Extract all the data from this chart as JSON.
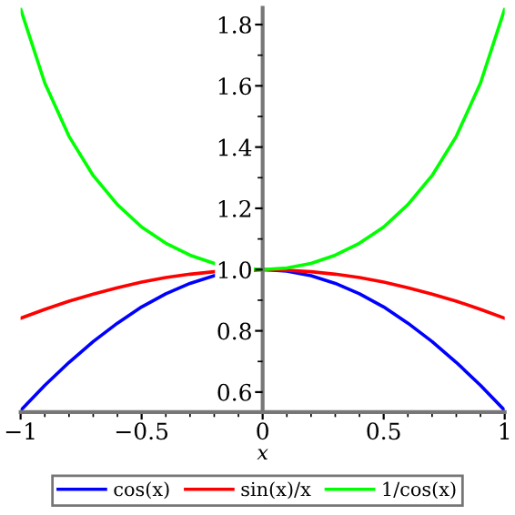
{
  "chart_data": {
    "type": "line",
    "xlabel": "x",
    "x": [
      -1,
      -0.9,
      -0.8,
      -0.7,
      -0.6,
      -0.5,
      -0.4,
      -0.3,
      -0.2,
      -0.1,
      0,
      0.1,
      0.2,
      0.3,
      0.4,
      0.5,
      0.6,
      0.7,
      0.8,
      0.9,
      1
    ],
    "series": [
      {
        "name": "cos(x)",
        "color": "#0000ff",
        "values": [
          0.54,
          0.622,
          0.697,
          0.765,
          0.825,
          0.878,
          0.921,
          0.955,
          0.98,
          0.995,
          1,
          0.995,
          0.98,
          0.955,
          0.921,
          0.878,
          0.825,
          0.765,
          0.697,
          0.622,
          0.54
        ]
      },
      {
        "name": "sin(x)/x",
        "color": "#ff0000",
        "values": [
          0.841,
          0.87,
          0.897,
          0.92,
          0.941,
          0.959,
          0.974,
          0.985,
          0.993,
          0.998,
          1,
          0.998,
          0.993,
          0.985,
          0.974,
          0.959,
          0.941,
          0.92,
          0.897,
          0.87,
          0.841
        ]
      },
      {
        "name": "1/cos(x)",
        "color": "#00ff00",
        "values": [
          1.851,
          1.609,
          1.435,
          1.307,
          1.212,
          1.139,
          1.086,
          1.047,
          1.02,
          1.005,
          1,
          1.005,
          1.02,
          1.047,
          1.086,
          1.139,
          1.212,
          1.307,
          1.435,
          1.609,
          1.851
        ]
      }
    ],
    "xlim": [
      -1,
      1
    ],
    "ylim": [
      0.535,
      1.855
    ],
    "xticks": [
      {
        "value": -1,
        "label": "−1"
      },
      {
        "value": -0.5,
        "label": "−0.5"
      },
      0,
      0.5,
      1
    ],
    "yticks": [
      0.6,
      0.8,
      {
        "value": 1.0,
        "label": "1.0"
      },
      1.2,
      1.4,
      1.6,
      1.8
    ],
    "legend": "bottom",
    "grid": false,
    "marker": "none",
    "line_style": "solid"
  }
}
